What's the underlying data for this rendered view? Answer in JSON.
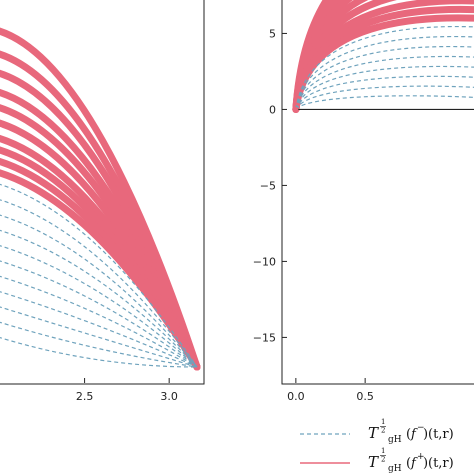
{
  "colors": {
    "plus": "#e8687c",
    "minus": "#6fa3bd",
    "axis": "#222222"
  },
  "legend": {
    "placement": "bottom-right",
    "items": [
      {
        "symbol": "T",
        "power": "1/2",
        "sub": "gH",
        "func": "f",
        "sign": "−",
        "args": "(t,r)",
        "style": "dashed",
        "color_key": "minus"
      },
      {
        "symbol": "T",
        "power": "1/2",
        "sub": "gH",
        "func": "f",
        "sign": "+",
        "args": "(t,r)",
        "style": "solid",
        "color_key": "plus"
      }
    ]
  },
  "chart_data": [
    {
      "type": "line",
      "panel": "left",
      "xlim": [
        2.0,
        3.2
      ],
      "ylim": [
        0.0,
        1.0
      ],
      "x_ticks": [
        2.5,
        3.0
      ],
      "x_tick_labels": [
        "2.5",
        "3.0"
      ],
      "y_ticks": [],
      "converge_point": [
        3.14,
        0.0
      ],
      "series": [
        {
          "style": "solid",
          "color_key": "plus",
          "y_at_left": [
            0.92,
            0.86,
            0.81,
            0.76,
            0.72,
            0.68,
            0.64,
            0.61,
            0.58,
            0.55
          ]
        },
        {
          "style": "dashed",
          "color_key": "minus",
          "y_at_left": [
            0.52,
            0.48,
            0.44,
            0.4,
            0.36,
            0.32,
            0.28,
            0.24,
            0.2,
            0.16,
            0.12
          ]
        }
      ]
    },
    {
      "type": "line",
      "panel": "right",
      "xlim": [
        -0.1,
        1.3
      ],
      "ylim": [
        -18.0,
        7.2
      ],
      "x_ticks": [
        0.0,
        0.5
      ],
      "x_tick_labels": [
        "0.0",
        "0.5"
      ],
      "y_ticks": [
        5,
        0,
        -5,
        -10,
        -15
      ],
      "y_tick_labels": [
        "5",
        "0",
        "−5",
        "−10",
        "−15"
      ],
      "baseline_y": 0,
      "series": [
        {
          "style": "solid",
          "color_key": "plus",
          "peak_x": 0.65,
          "peak_values": [
            6.3,
            5.9,
            5.5,
            5.1,
            4.7,
            4.3,
            3.9,
            3.6,
            3.3
          ]
        },
        {
          "style": "dashed",
          "color_key": "minus",
          "peak_x": 0.65,
          "peak_values": [
            3.0,
            2.65,
            2.3,
            1.95,
            1.6,
            1.25,
            0.9,
            0.55
          ]
        }
      ]
    }
  ]
}
